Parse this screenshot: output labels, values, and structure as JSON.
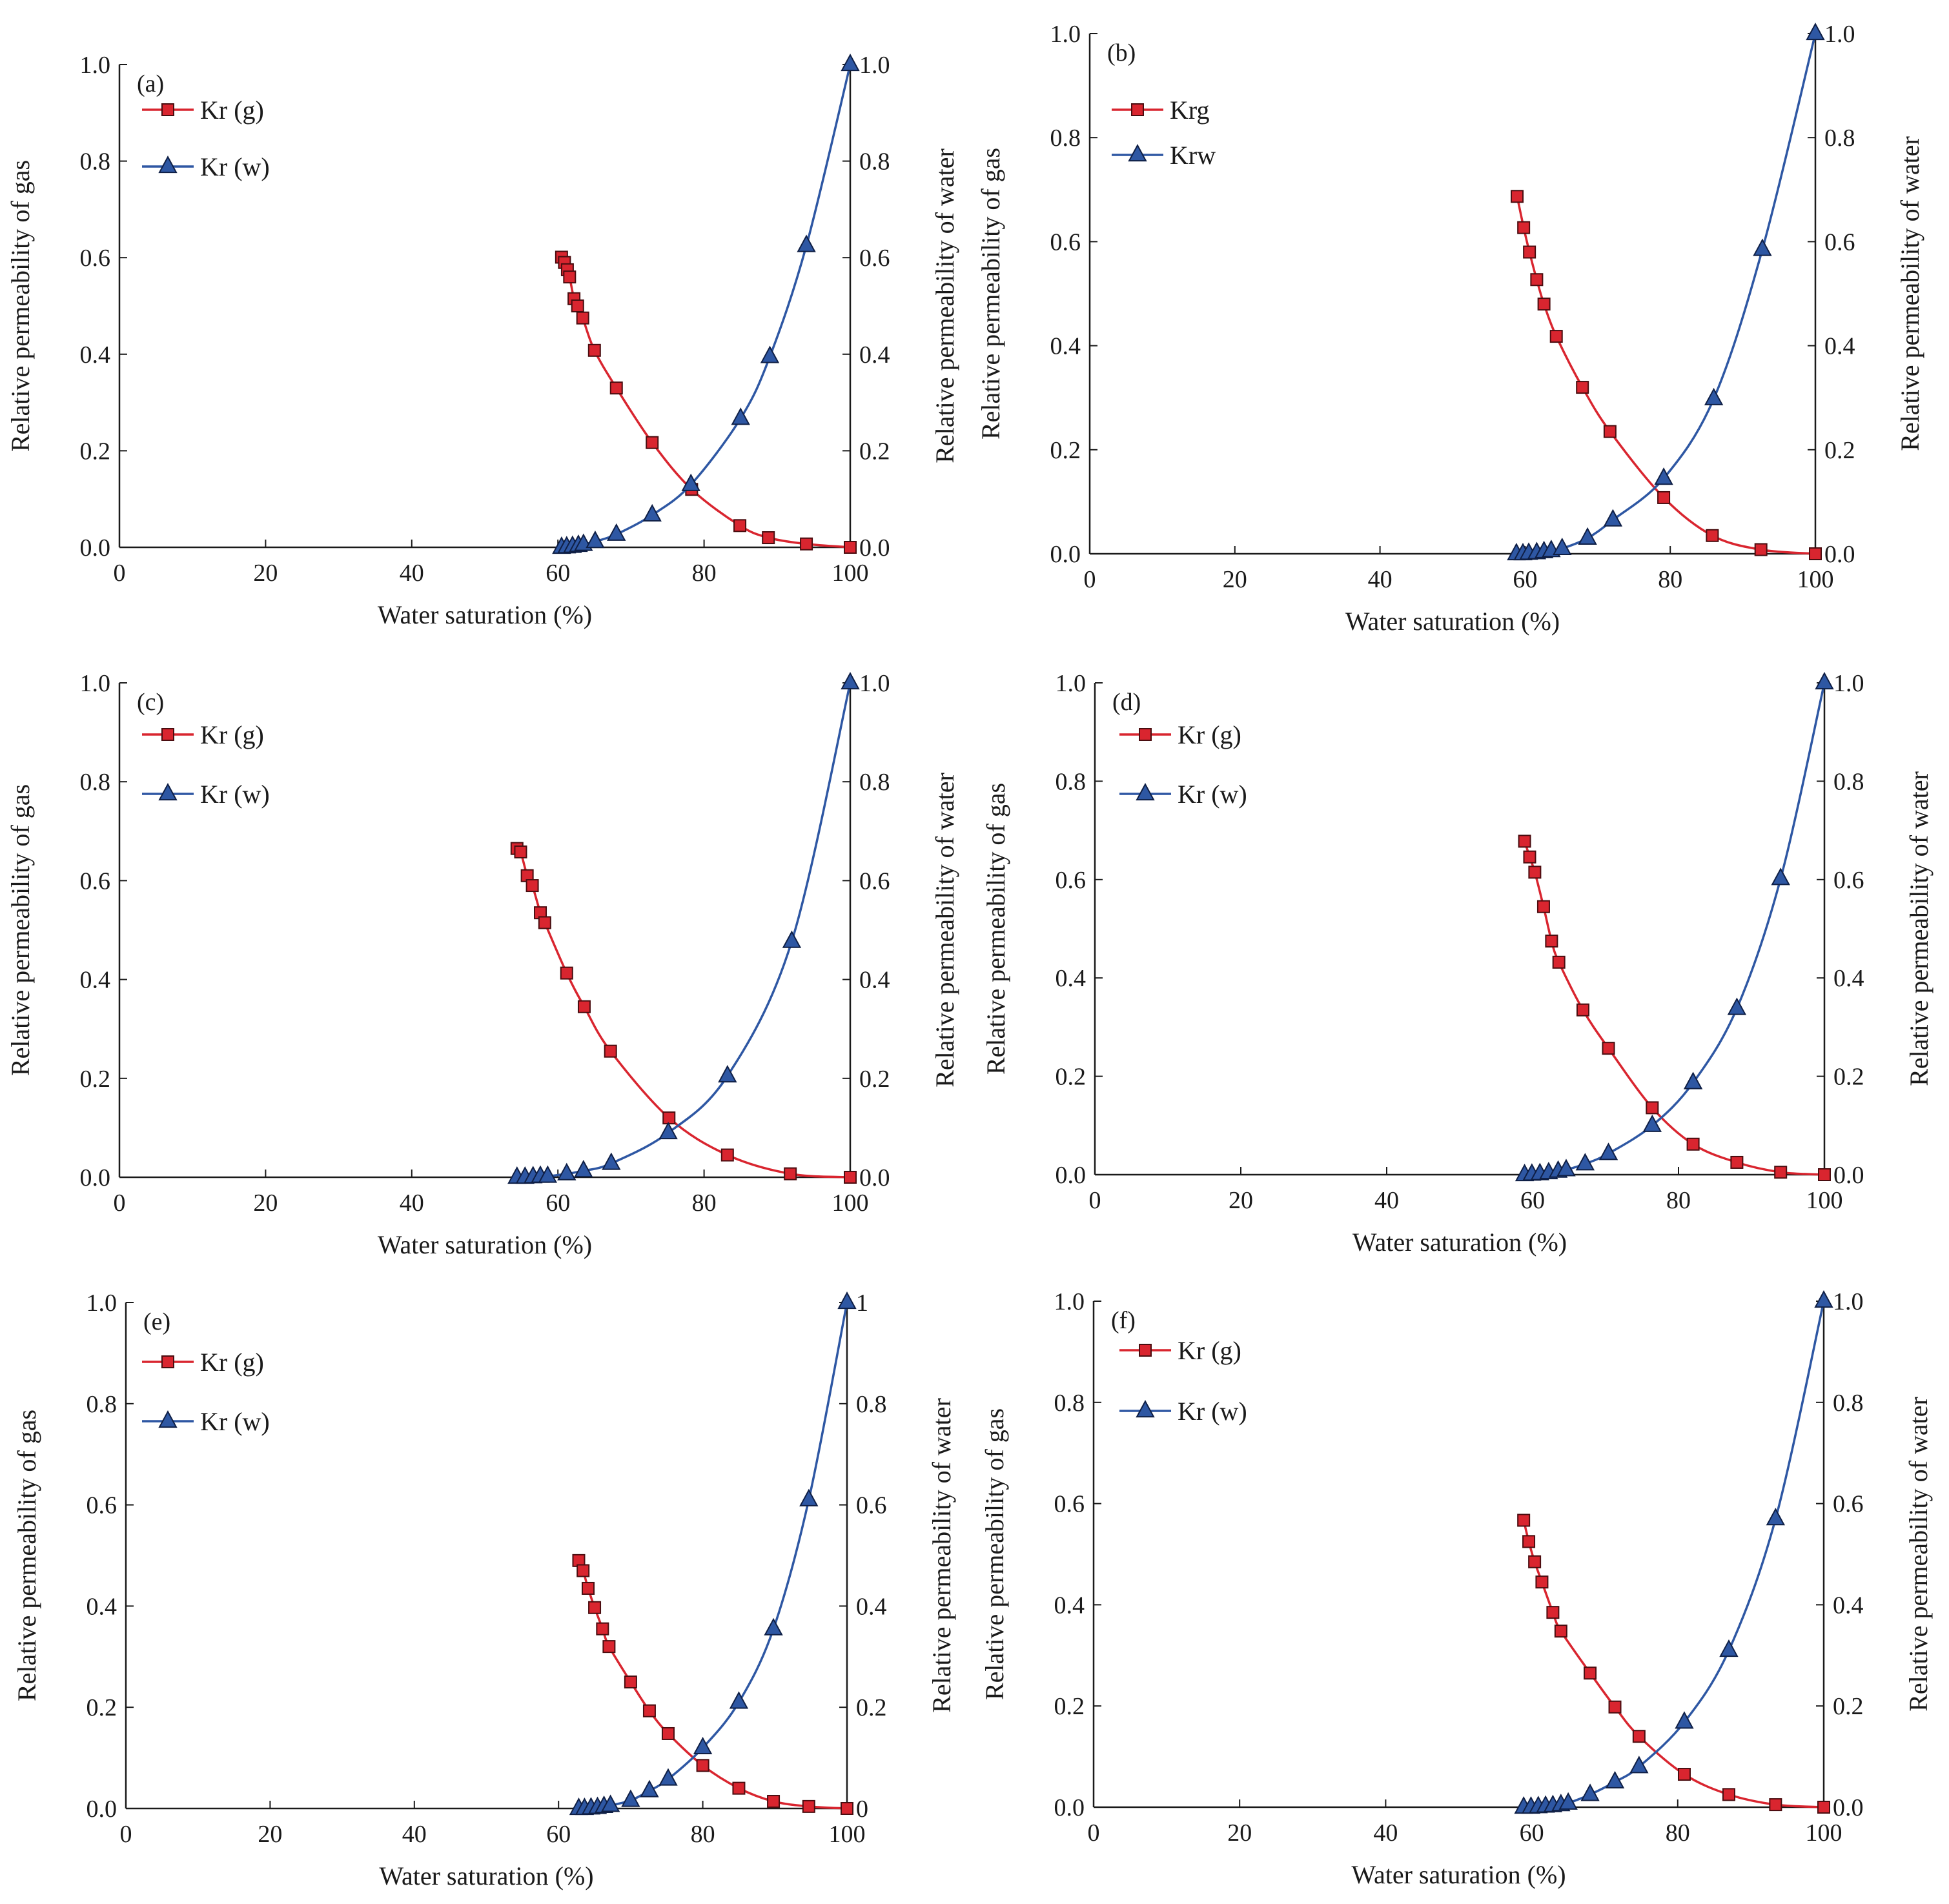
{
  "colors": {
    "gas": "#d9252f",
    "water": "#2e57a3",
    "axis": "#1a1a1a"
  },
  "chart_data": [
    {
      "type": "line",
      "panel_label": "(a)",
      "xlabel": "Water saturation (%)",
      "ylabel_left": "Relative permeability of gas",
      "ylabel_right": "Relative permeability of water",
      "xlim": [
        0,
        100
      ],
      "ylim": [
        0,
        1.0
      ],
      "xticks": [
        "0",
        "20",
        "40",
        "60",
        "80",
        "100"
      ],
      "yticks_left": [
        "0.0",
        "0.2",
        "0.4",
        "0.6",
        "0.8",
        "1.0"
      ],
      "yticks_right": [
        "0.0",
        "0.2",
        "0.4",
        "0.6",
        "0.8",
        "1.0"
      ],
      "series": [
        {
          "name": "Kr (g)",
          "marker": "square",
          "x": [
            60.5,
            60.9,
            61.3,
            61.6,
            62.2,
            62.7,
            63.4,
            65.0,
            68.0,
            72.9,
            78.3,
            84.9,
            88.8,
            94.0,
            100
          ],
          "y": [
            0.601,
            0.59,
            0.575,
            0.56,
            0.515,
            0.5,
            0.475,
            0.408,
            0.33,
            0.217,
            0.12,
            0.045,
            0.02,
            0.007,
            0.0
          ]
        },
        {
          "name": "Kr (w)",
          "marker": "triangle",
          "x": [
            60.5,
            61.2,
            62.0,
            62.8,
            63.5,
            65.1,
            68.0,
            72.9,
            78.2,
            85.0,
            89.0,
            94.0,
            100
          ],
          "y": [
            0.0,
            0.001,
            0.002,
            0.004,
            0.006,
            0.012,
            0.027,
            0.067,
            0.13,
            0.267,
            0.395,
            0.625,
            1.0
          ]
        }
      ]
    },
    {
      "type": "line",
      "panel_label": "(b)",
      "xlabel": "Water saturation (%)",
      "ylabel_left": "Relative permeability of gas",
      "ylabel_right": "Relative permeability of water",
      "xlim": [
        0,
        100
      ],
      "ylim": [
        0,
        1.0
      ],
      "xticks": [
        "0",
        "20",
        "40",
        "60",
        "80",
        "100"
      ],
      "yticks_left": [
        "0.0",
        "0.2",
        "0.4",
        "0.6",
        "0.8",
        "1.0"
      ],
      "yticks_right": [
        "0.0",
        "0.2",
        "0.4",
        "0.6",
        "0.8",
        "1.0"
      ],
      "series": [
        {
          "name": "Krg",
          "marker": "square",
          "x": [
            58.9,
            59.8,
            60.6,
            61.6,
            62.6,
            64.3,
            67.9,
            71.7,
            79.1,
            85.8,
            92.5,
            100
          ],
          "y": [
            0.687,
            0.627,
            0.58,
            0.527,
            0.48,
            0.418,
            0.32,
            0.235,
            0.108,
            0.035,
            0.008,
            0.0
          ]
        },
        {
          "name": "Krw",
          "marker": "triangle",
          "x": [
            58.8,
            59.7,
            60.5,
            61.6,
            62.6,
            63.6,
            65.1,
            68.6,
            72.1,
            79.1,
            86.0,
            92.7,
            100
          ],
          "y": [
            0.0,
            0.0,
            0.001,
            0.002,
            0.004,
            0.006,
            0.01,
            0.03,
            0.065,
            0.145,
            0.298,
            0.585,
            1.0
          ]
        }
      ]
    },
    {
      "type": "line",
      "panel_label": "(c)",
      "xlabel": "Water saturation (%)",
      "ylabel_left": "Relative permeability of gas",
      "ylabel_right": "Relative permeability of water",
      "xlim": [
        0,
        100
      ],
      "ylim": [
        0,
        1.0
      ],
      "xticks": [
        "0",
        "20",
        "40",
        "60",
        "80",
        "100"
      ],
      "yticks_left": [
        "0.0",
        "0.2",
        "0.4",
        "0.6",
        "0.8",
        "1.0"
      ],
      "yticks_right": [
        "0.0",
        "0.2",
        "0.4",
        "0.6",
        "0.8",
        "1.0"
      ],
      "series": [
        {
          "name": "Kr (g)",
          "marker": "square",
          "x": [
            54.4,
            54.9,
            55.8,
            56.5,
            57.6,
            58.2,
            61.2,
            63.6,
            67.2,
            75.2,
            83.2,
            91.8,
            100
          ],
          "y": [
            0.665,
            0.658,
            0.61,
            0.59,
            0.535,
            0.515,
            0.413,
            0.345,
            0.255,
            0.12,
            0.045,
            0.007,
            0.0
          ]
        },
        {
          "name": "Kr (w)",
          "marker": "triangle",
          "x": [
            54.4,
            55.5,
            56.6,
            57.6,
            58.6,
            61.2,
            63.5,
            67.3,
            75.1,
            83.2,
            92.0,
            100
          ],
          "y": [
            0.0,
            0.0,
            0.001,
            0.002,
            0.002,
            0.007,
            0.013,
            0.028,
            0.09,
            0.205,
            0.477,
            1.0
          ]
        }
      ]
    },
    {
      "type": "line",
      "panel_label": "(d)",
      "xlabel": "Water saturation (%)",
      "ylabel_left": "Relative permeability of gas",
      "ylabel_right": "Relative permeability of water",
      "xlim": [
        0,
        100
      ],
      "ylim": [
        0,
        1.0
      ],
      "xticks": [
        "0",
        "20",
        "40",
        "60",
        "80",
        "100"
      ],
      "yticks_left": [
        "0.0",
        "0.2",
        "0.4",
        "0.6",
        "0.8",
        "1.0"
      ],
      "yticks_right": [
        "0.0",
        "0.2",
        "0.4",
        "0.6",
        "0.8",
        "1.0"
      ],
      "series": [
        {
          "name": "Kr (g)",
          "marker": "square",
          "x": [
            58.9,
            59.6,
            60.3,
            61.5,
            62.6,
            63.6,
            66.9,
            70.4,
            76.4,
            82.0,
            88.0,
            94.0,
            100
          ],
          "y": [
            0.678,
            0.646,
            0.615,
            0.545,
            0.475,
            0.432,
            0.335,
            0.257,
            0.136,
            0.062,
            0.025,
            0.005,
            0.0
          ]
        },
        {
          "name": "Kr (w)",
          "marker": "triangle",
          "x": [
            58.9,
            59.9,
            61.0,
            62.2,
            63.5,
            64.6,
            67.2,
            70.4,
            76.4,
            82.0,
            88.0,
            94.0,
            100
          ],
          "y": [
            0.0,
            0.001,
            0.002,
            0.004,
            0.007,
            0.01,
            0.022,
            0.043,
            0.1,
            0.187,
            0.338,
            0.602,
            1.0
          ]
        }
      ]
    },
    {
      "type": "line",
      "panel_label": "(e)",
      "xlabel": "Water saturation (%)",
      "ylabel_left": "Relative permeability of gas",
      "ylabel_right": "Relative permeability of water",
      "xlim": [
        0,
        100
      ],
      "ylim": [
        0,
        1.0
      ],
      "xticks": [
        "0",
        "20",
        "40",
        "60",
        "80",
        "100"
      ],
      "yticks_left": [
        "0.0",
        "0.2",
        "0.4",
        "0.6",
        "0.8",
        "1.0"
      ],
      "yticks_right": [
        "0",
        "0.2",
        "0.4",
        "0.6",
        "0.8",
        "1"
      ],
      "series": [
        {
          "name": "Kr (g)",
          "marker": "square",
          "x": [
            62.8,
            63.4,
            64.1,
            65.0,
            66.1,
            67.0,
            70.0,
            72.6,
            75.2,
            80.0,
            85.0,
            89.8,
            94.7,
            100
          ],
          "y": [
            0.49,
            0.47,
            0.435,
            0.397,
            0.355,
            0.32,
            0.25,
            0.193,
            0.148,
            0.085,
            0.04,
            0.014,
            0.004,
            0.0
          ]
        },
        {
          "name": "Kr (w)",
          "marker": "triangle",
          "x": [
            62.8,
            63.6,
            64.5,
            65.4,
            66.3,
            67.2,
            70.0,
            72.6,
            75.2,
            80.0,
            85.0,
            89.8,
            94.7,
            100
          ],
          "y": [
            0.0,
            0.0,
            0.001,
            0.002,
            0.004,
            0.006,
            0.016,
            0.035,
            0.058,
            0.12,
            0.21,
            0.355,
            0.61,
            1.0
          ]
        }
      ]
    },
    {
      "type": "line",
      "panel_label": "(f)",
      "xlabel": "Water saturation (%)",
      "ylabel_left": "Relative permeability of gas",
      "ylabel_right": "Relative permeability of water",
      "xlim": [
        0,
        100
      ],
      "ylim": [
        0,
        1.0
      ],
      "xticks": [
        "0",
        "20",
        "40",
        "60",
        "80",
        "100"
      ],
      "yticks_left": [
        "0.0",
        "0.2",
        "0.4",
        "0.6",
        "0.8",
        "1.0"
      ],
      "yticks_right": [
        "0.0",
        "0.2",
        "0.4",
        "0.6",
        "0.8",
        "1.0"
      ],
      "series": [
        {
          "name": "Kr (g)",
          "marker": "square",
          "x": [
            58.9,
            59.6,
            60.4,
            61.4,
            62.9,
            64.0,
            68.0,
            71.4,
            74.7,
            80.9,
            87.0,
            93.4,
            100
          ],
          "y": [
            0.567,
            0.525,
            0.485,
            0.445,
            0.385,
            0.348,
            0.265,
            0.198,
            0.14,
            0.065,
            0.025,
            0.005,
            0.0
          ]
        },
        {
          "name": "Kr (w)",
          "marker": "triangle",
          "x": [
            58.9,
            59.9,
            60.9,
            61.9,
            62.9,
            64.0,
            65.0,
            68.0,
            71.4,
            74.7,
            80.9,
            87.0,
            93.4,
            100
          ],
          "y": [
            0.0,
            0.0,
            0.001,
            0.002,
            0.003,
            0.005,
            0.008,
            0.025,
            0.05,
            0.08,
            0.168,
            0.31,
            0.57,
            1.0
          ]
        }
      ]
    }
  ]
}
